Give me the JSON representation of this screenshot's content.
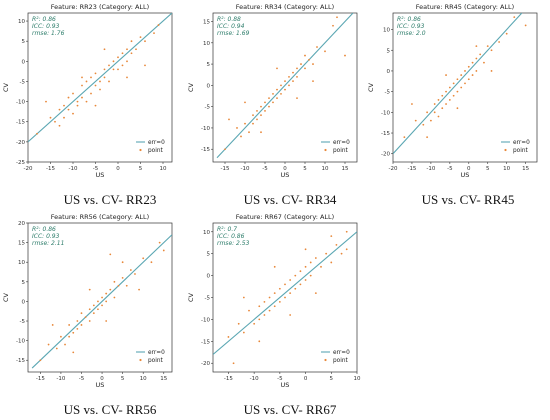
{
  "chart_data": [
    {
      "type": "scatter",
      "title": "Feature: RR23 (Category: ALL)",
      "xlabel": "US",
      "ylabel": "CV",
      "xlim": [
        -20,
        12
      ],
      "ylim": [
        -25,
        12
      ],
      "xticks": [
        -20,
        -15,
        -10,
        -5,
        0,
        5,
        10
      ],
      "yticks": [
        -25,
        -20,
        -15,
        -10,
        -5,
        0,
        5,
        10
      ],
      "stats": [
        "R²: 0.86",
        "ICC: 0.93",
        "rmse: 1.76"
      ],
      "legend": [
        "err=0",
        "point"
      ],
      "legend_position": "bottom-right",
      "series": [
        {
          "values": [
            [
              -18,
              -18
            ],
            [
              -15,
              -14
            ],
            [
              -14,
              -15
            ],
            [
              -13,
              -12
            ],
            [
              -12,
              -14
            ],
            [
              -12,
              -11
            ],
            [
              -11,
              -12
            ],
            [
              -11,
              -9
            ],
            [
              -10,
              -13
            ],
            [
              -10,
              -8
            ],
            [
              -9,
              -10
            ],
            [
              -9,
              -11
            ],
            [
              -8,
              -6
            ],
            [
              -8,
              -9
            ],
            [
              -7,
              -10
            ],
            [
              -7,
              -5
            ],
            [
              -6,
              -4
            ],
            [
              -6,
              -8
            ],
            [
              -5,
              -6
            ],
            [
              -5,
              -3
            ],
            [
              -4,
              -5
            ],
            [
              -4,
              -7
            ],
            [
              -3,
              -2
            ],
            [
              -3,
              -4
            ],
            [
              -2,
              -1
            ],
            [
              -2,
              -5
            ],
            [
              -1,
              -2
            ],
            [
              -1,
              0
            ],
            [
              0,
              1
            ],
            [
              0,
              -2
            ],
            [
              1,
              -1
            ],
            [
              1,
              2
            ],
            [
              2,
              3
            ],
            [
              2,
              0
            ],
            [
              3,
              2
            ],
            [
              3,
              5
            ],
            [
              4,
              3
            ],
            [
              5,
              6
            ],
            [
              6,
              5
            ],
            [
              8,
              7
            ],
            [
              -16,
              -10
            ],
            [
              -13,
              -16
            ],
            [
              -8,
              -4
            ],
            [
              -5,
              -11
            ],
            [
              -3,
              3
            ],
            [
              2,
              -4
            ],
            [
              6,
              -1
            ],
            [
              9,
              9
            ]
          ],
          "point": "orange"
        },
        {
          "line": [
            [
              -20,
              -20
            ],
            [
              12,
              12
            ]
          ],
          "name": "err=0"
        }
      ]
    },
    {
      "type": "scatter",
      "title": "Feature: RR34 (Category: ALL)",
      "xlabel": "US",
      "ylabel": "CV",
      "xlim": [
        -18,
        18
      ],
      "ylim": [
        -18,
        17
      ],
      "xticks": [
        -15,
        -10,
        -5,
        0,
        5,
        10,
        15
      ],
      "yticks": [
        -15,
        -10,
        -5,
        0,
        5,
        10,
        15
      ],
      "stats": [
        "R²: 0.88",
        "ICC: 0.94",
        "rmse: 1.69"
      ],
      "legend": [
        "err=0",
        "point"
      ],
      "legend_position": "bottom-right",
      "series": [
        {
          "values": [
            [
              -15,
              -15
            ],
            [
              -12,
              -10
            ],
            [
              -11,
              -12
            ],
            [
              -10,
              -9
            ],
            [
              -9,
              -11
            ],
            [
              -8,
              -7
            ],
            [
              -8,
              -9
            ],
            [
              -7,
              -6
            ],
            [
              -7,
              -8
            ],
            [
              -6,
              -5
            ],
            [
              -6,
              -7
            ],
            [
              -5,
              -4
            ],
            [
              -5,
              -6
            ],
            [
              -4,
              -3
            ],
            [
              -4,
              -5
            ],
            [
              -3,
              -2
            ],
            [
              -3,
              -4
            ],
            [
              -2,
              -1
            ],
            [
              -2,
              -3
            ],
            [
              -1,
              0
            ],
            [
              -1,
              -2
            ],
            [
              0,
              1
            ],
            [
              0,
              -1
            ],
            [
              1,
              2
            ],
            [
              1,
              0
            ],
            [
              2,
              3
            ],
            [
              2,
              1
            ],
            [
              3,
              4
            ],
            [
              3,
              2
            ],
            [
              4,
              5
            ],
            [
              5,
              4
            ],
            [
              5,
              7
            ],
            [
              6,
              6
            ],
            [
              7,
              5
            ],
            [
              8,
              9
            ],
            [
              10,
              8
            ],
            [
              12,
              14
            ],
            [
              -14,
              -8
            ],
            [
              -10,
              -4
            ],
            [
              -6,
              -11
            ],
            [
              -2,
              4
            ],
            [
              3,
              -3
            ],
            [
              7,
              1
            ],
            [
              15,
              7
            ],
            [
              13,
              16
            ]
          ],
          "point": "orange"
        },
        {
          "line": [
            [
              -17,
              -17
            ],
            [
              17,
              17
            ]
          ],
          "name": "err=0"
        }
      ]
    },
    {
      "type": "scatter",
      "title": "Feature: RR45 (Category: ALL)",
      "xlabel": "US",
      "ylabel": "CV",
      "xlim": [
        -20,
        18
      ],
      "ylim": [
        -22,
        14
      ],
      "xticks": [
        -20,
        -15,
        -10,
        -5,
        0,
        5,
        10,
        15
      ],
      "yticks": [
        -20,
        -15,
        -10,
        -5,
        0,
        5,
        10
      ],
      "stats": [
        "R²: 0.86",
        "ICC: 0.93",
        "rmse: 2.0"
      ],
      "legend": [
        "err=0",
        "point"
      ],
      "legend_position": "bottom-right",
      "series": [
        {
          "values": [
            [
              -17,
              -16
            ],
            [
              -14,
              -12
            ],
            [
              -12,
              -13
            ],
            [
              -11,
              -10
            ],
            [
              -10,
              -12
            ],
            [
              -9,
              -8
            ],
            [
              -9,
              -10
            ],
            [
              -8,
              -7
            ],
            [
              -8,
              -11
            ],
            [
              -7,
              -6
            ],
            [
              -7,
              -9
            ],
            [
              -6,
              -5
            ],
            [
              -6,
              -8
            ],
            [
              -5,
              -4
            ],
            [
              -5,
              -7
            ],
            [
              -4,
              -3
            ],
            [
              -4,
              -6
            ],
            [
              -3,
              -2
            ],
            [
              -3,
              -5
            ],
            [
              -2,
              -1
            ],
            [
              -2,
              -4
            ],
            [
              -1,
              0
            ],
            [
              -1,
              -3
            ],
            [
              0,
              1
            ],
            [
              0,
              -2
            ],
            [
              1,
              2
            ],
            [
              1,
              -1
            ],
            [
              2,
              3
            ],
            [
              2,
              0
            ],
            [
              3,
              4
            ],
            [
              4,
              2
            ],
            [
              5,
              6
            ],
            [
              6,
              5
            ],
            [
              8,
              7
            ],
            [
              10,
              9
            ],
            [
              -15,
              -8
            ],
            [
              -11,
              -16
            ],
            [
              -6,
              -1
            ],
            [
              -3,
              -9
            ],
            [
              2,
              6
            ],
            [
              6,
              0
            ],
            [
              12,
              13
            ],
            [
              15,
              11
            ]
          ],
          "point": "orange"
        },
        {
          "line": [
            [
              -20,
              -20
            ],
            [
              14,
              14
            ]
          ],
          "name": "err=0"
        }
      ]
    },
    {
      "type": "scatter",
      "title": "Feature: RR56 (Category: ALL)",
      "xlabel": "US",
      "ylabel": "CV",
      "xlim": [
        -18,
        17
      ],
      "ylim": [
        -18,
        20
      ],
      "xticks": [
        -15,
        -10,
        -5,
        0,
        5,
        10,
        15
      ],
      "yticks": [
        -15,
        -10,
        -5,
        0,
        5,
        10,
        15,
        20
      ],
      "stats": [
        "R²: 0.86",
        "ICC: 0.93",
        "rmse: 2.11"
      ],
      "legend": [
        "err=0",
        "point"
      ],
      "legend_position": "bottom-right",
      "series": [
        {
          "values": [
            [
              -15,
              -15
            ],
            [
              -13,
              -11
            ],
            [
              -11,
              -12
            ],
            [
              -10,
              -9
            ],
            [
              -9,
              -11
            ],
            [
              -8,
              -6
            ],
            [
              -8,
              -9
            ],
            [
              -7,
              -8
            ],
            [
              -6,
              -5
            ],
            [
              -6,
              -7
            ],
            [
              -5,
              -3
            ],
            [
              -5,
              -6
            ],
            [
              -4,
              -4
            ],
            [
              -3,
              -2
            ],
            [
              -3,
              -5
            ],
            [
              -2,
              -1
            ],
            [
              -2,
              -3
            ],
            [
              -1,
              0
            ],
            [
              -1,
              -2
            ],
            [
              0,
              1
            ],
            [
              0,
              -1
            ],
            [
              1,
              2
            ],
            [
              1,
              0
            ],
            [
              2,
              3
            ],
            [
              3,
              1
            ],
            [
              3,
              5
            ],
            [
              4,
              4
            ],
            [
              5,
              6
            ],
            [
              6,
              4
            ],
            [
              7,
              8
            ],
            [
              8,
              7
            ],
            [
              10,
              11
            ],
            [
              12,
              10
            ],
            [
              14,
              15
            ],
            [
              -12,
              -6
            ],
            [
              -7,
              -13
            ],
            [
              -3,
              3
            ],
            [
              1,
              -5
            ],
            [
              5,
              10
            ],
            [
              9,
              3
            ],
            [
              2,
              12
            ],
            [
              15,
              13
            ]
          ],
          "point": "orange"
        },
        {
          "line": [
            [
              -17,
              -17
            ],
            [
              17,
              17
            ]
          ],
          "name": "err=0"
        }
      ]
    },
    {
      "type": "scatter",
      "title": "Feature: RR67 (Category: ALL)",
      "xlabel": "US",
      "ylabel": "CV",
      "xlim": [
        -18,
        10
      ],
      "ylim": [
        -22,
        12
      ],
      "xticks": [
        -15,
        -10,
        -5,
        0,
        5,
        10
      ],
      "yticks": [
        -20,
        -15,
        -10,
        -5,
        0,
        5,
        10
      ],
      "stats": [
        "R²: 0.7",
        "ICC: 0.86",
        "rmse: 2.53"
      ],
      "legend": [
        "err=0",
        "point"
      ],
      "legend_position": "bottom-right",
      "series": [
        {
          "values": [
            [
              -15,
              -14
            ],
            [
              -13,
              -11
            ],
            [
              -12,
              -13
            ],
            [
              -11,
              -8
            ],
            [
              -10,
              -11
            ],
            [
              -9,
              -7
            ],
            [
              -9,
              -10
            ],
            [
              -8,
              -6
            ],
            [
              -8,
              -9
            ],
            [
              -7,
              -5
            ],
            [
              -7,
              -8
            ],
            [
              -6,
              -4
            ],
            [
              -6,
              -7
            ],
            [
              -5,
              -3
            ],
            [
              -5,
              -6
            ],
            [
              -4,
              -2
            ],
            [
              -4,
              -5
            ],
            [
              -3,
              -1
            ],
            [
              -3,
              -4
            ],
            [
              -2,
              0
            ],
            [
              -2,
              -3
            ],
            [
              -1,
              1
            ],
            [
              -1,
              -2
            ],
            [
              0,
              2
            ],
            [
              0,
              -1
            ],
            [
              1,
              3
            ],
            [
              1,
              0
            ],
            [
              2,
              4
            ],
            [
              3,
              2
            ],
            [
              4,
              5
            ],
            [
              5,
              3
            ],
            [
              6,
              7
            ],
            [
              7,
              5
            ],
            [
              8,
              6
            ],
            [
              -14,
              -20
            ],
            [
              -12,
              -5
            ],
            [
              -9,
              -15
            ],
            [
              -6,
              2
            ],
            [
              -3,
              -9
            ],
            [
              0,
              6
            ],
            [
              2,
              -4
            ],
            [
              5,
              9
            ],
            [
              8,
              10
            ]
          ],
          "point": "orange"
        },
        {
          "line": [
            [
              -18,
              -18
            ],
            [
              10,
              10
            ]
          ],
          "name": "err=0"
        }
      ]
    }
  ],
  "captions": [
    "US vs. CV- RR23",
    "US vs. CV- RR34",
    "US vs. CV- RR45",
    "US vs. CV- RR56",
    "US vs. CV- RR67"
  ],
  "colors": {
    "line": "#5ba7b3",
    "point": "#e8883a",
    "stats": "#2e7d6b"
  }
}
